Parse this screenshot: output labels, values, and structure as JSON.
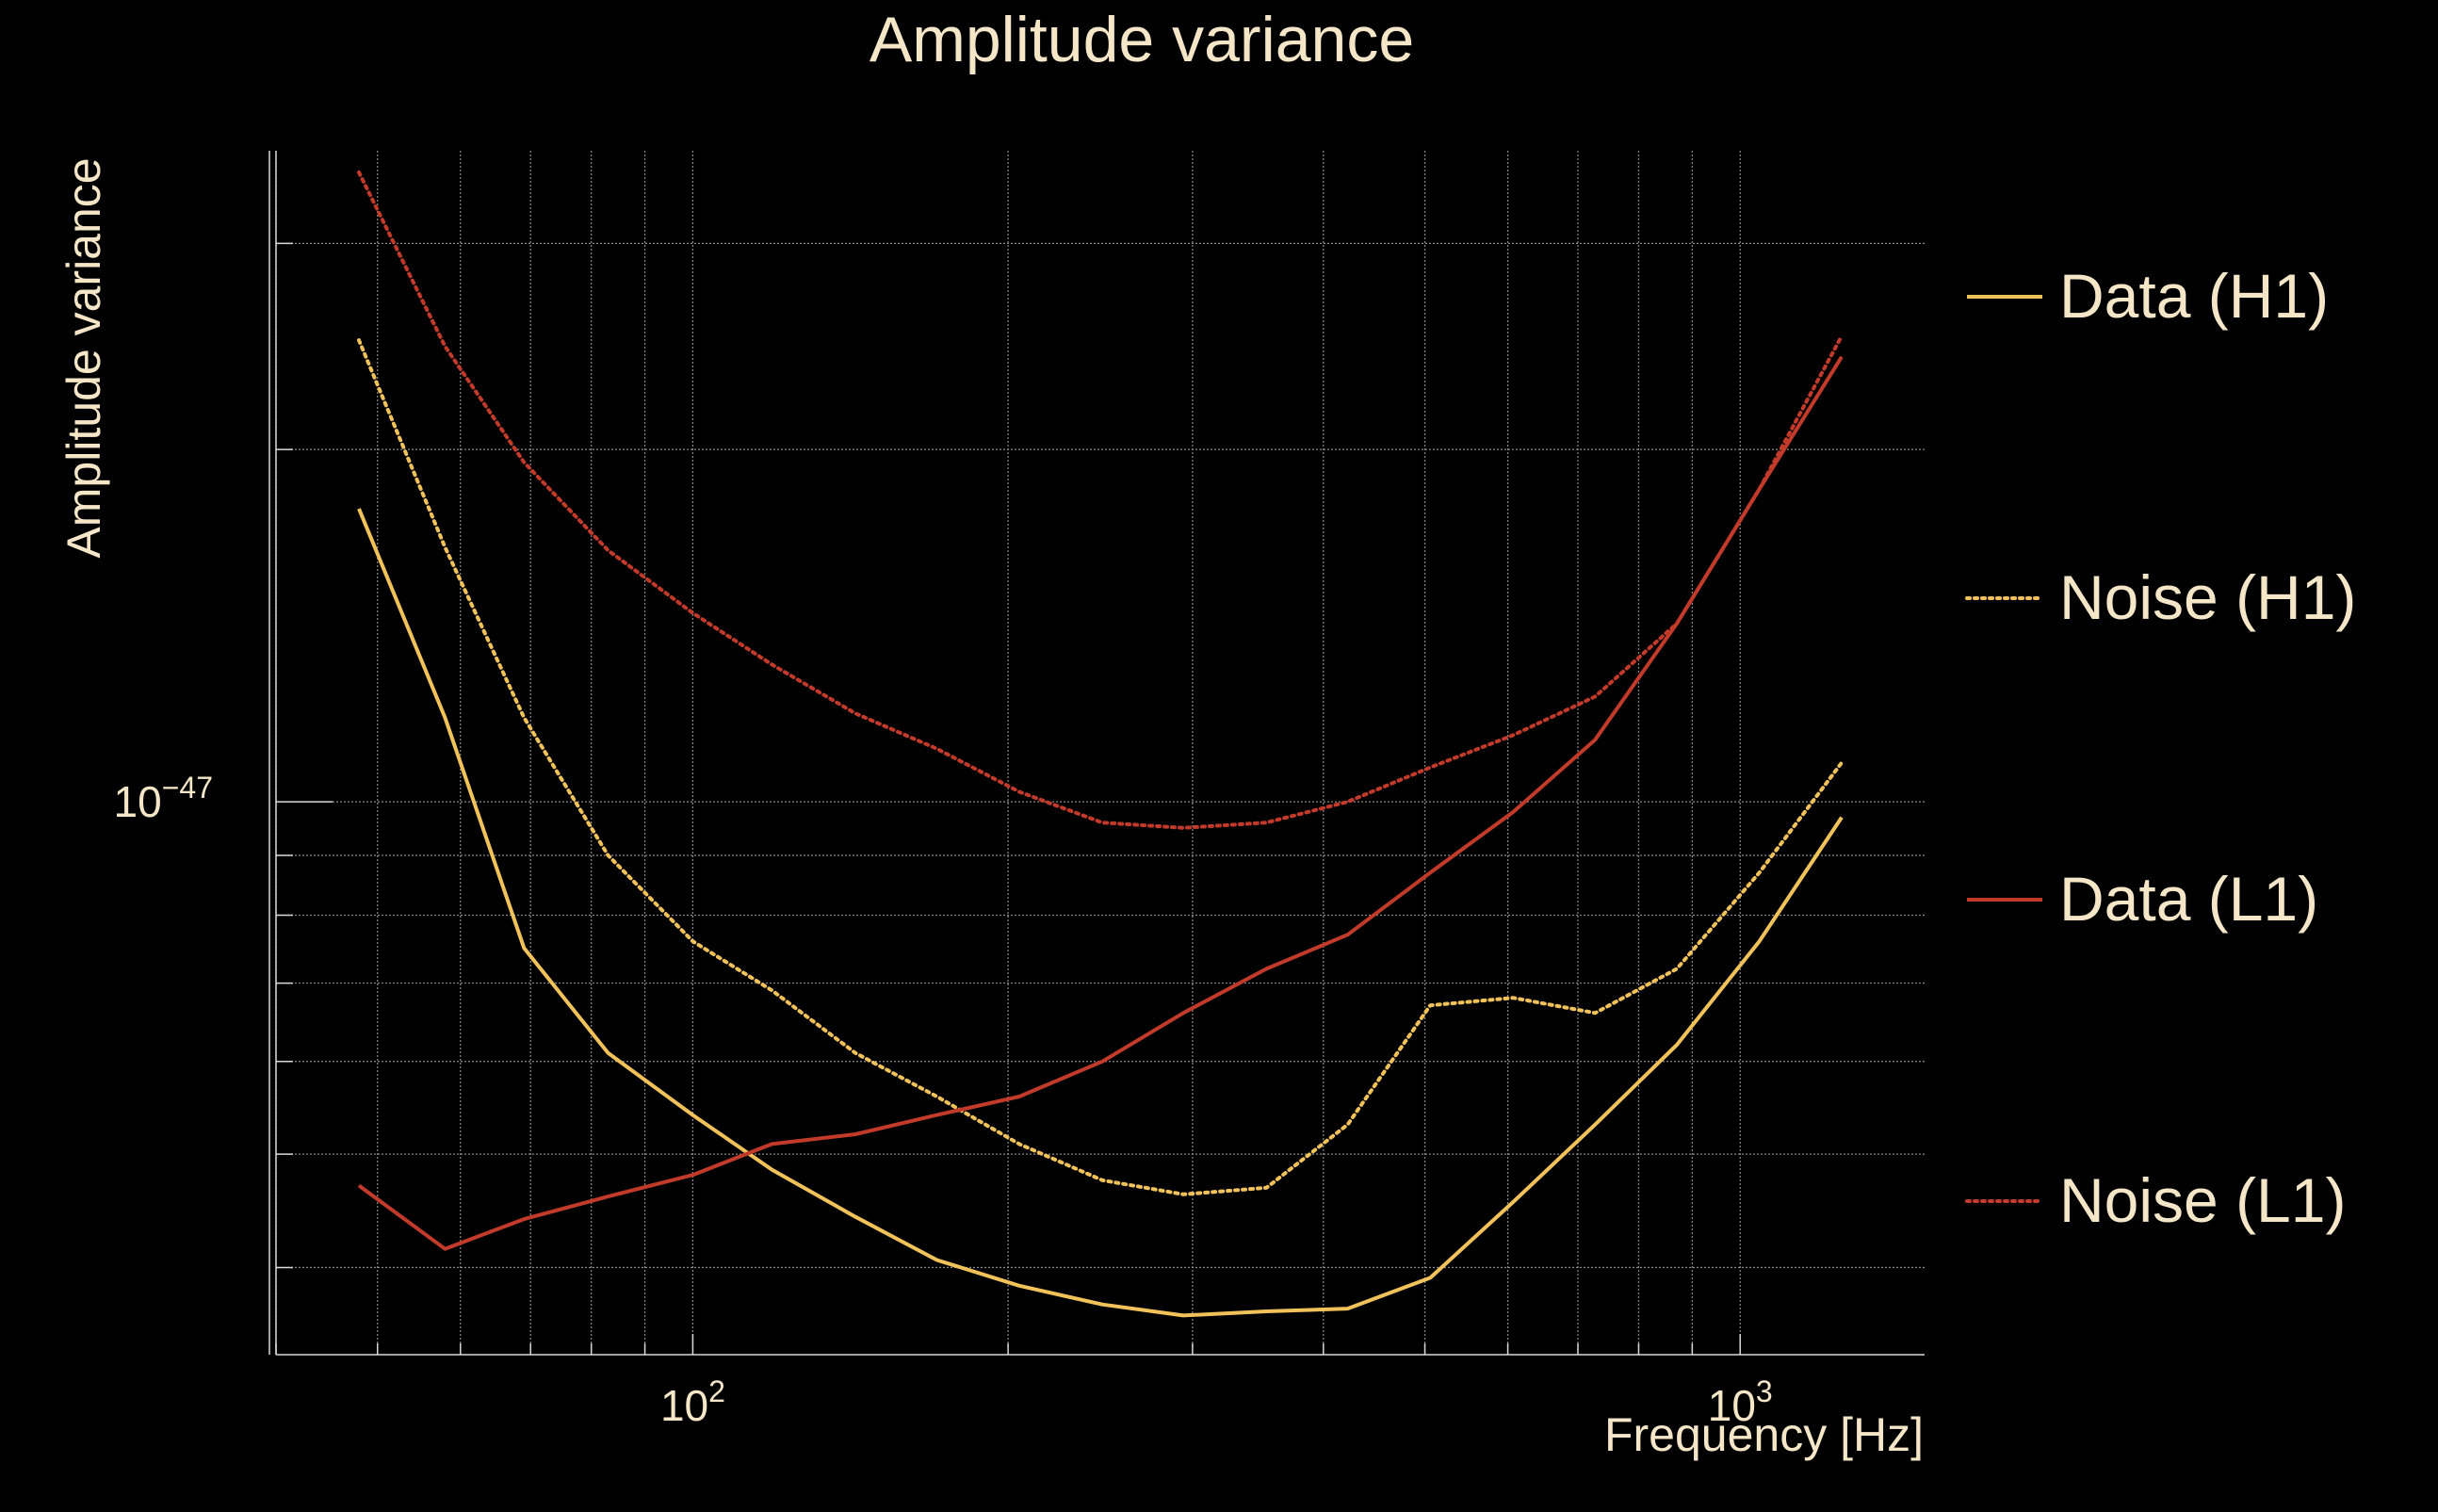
{
  "chart_data": {
    "type": "line",
    "title": "Amplitude variance",
    "xlabel": "Frequency [Hz]",
    "ylabel": "Amplitude variance",
    "x_scale": "log",
    "y_scale": "log",
    "xlim": [
      40,
      1500
    ],
    "ylim": [
      3.37e-48,
      3.6e-47
    ],
    "x_tick_labels": [
      {
        "value": 100,
        "base": "10",
        "exp": "2"
      },
      {
        "value": 1000,
        "base": "10",
        "exp": "3"
      }
    ],
    "y_tick_labels": [
      {
        "value": 1e-47,
        "base": "10",
        "exp": "−47"
      }
    ],
    "grid": true,
    "legend_position": "right",
    "colors": {
      "background": "#000000",
      "text": "#f6e6c8",
      "grid": "#8a8a8a",
      "axis": "#d8d8d8"
    },
    "series": [
      {
        "name": "Data (H1)",
        "color": "#f2c25a",
        "style": "solid",
        "x": [
          48,
          58,
          69,
          83,
          100,
          119,
          143,
          171,
          205,
          246,
          294,
          353,
          422,
          506,
          607,
          727,
          870,
          1043,
          1250
        ],
        "y": [
          1.78e-47,
          1.18e-47,
          7.5e-48,
          6.1e-48,
          5.4e-48,
          4.85e-48,
          4.42e-48,
          4.06e-48,
          3.86e-48,
          3.72e-48,
          3.64e-48,
          3.67e-48,
          3.69e-48,
          3.92e-48,
          4.55e-48,
          5.3e-48,
          6.2e-48,
          7.6e-48,
          9.7e-48
        ]
      },
      {
        "name": "Noise (H1)",
        "color": "#f2c25a",
        "style": "dotted",
        "x": [
          48,
          58,
          69,
          83,
          100,
          119,
          143,
          171,
          205,
          246,
          294,
          353,
          422,
          506,
          607,
          727,
          870,
          1043,
          1250
        ],
        "y": [
          2.48e-47,
          1.65e-47,
          1.18e-47,
          9e-48,
          7.6e-48,
          6.9e-48,
          6.1e-48,
          5.6e-48,
          5.1e-48,
          4.75e-48,
          4.62e-48,
          4.68e-48,
          5.3e-48,
          6.7e-48,
          6.8e-48,
          6.6e-48,
          7.2e-48,
          8.7e-48,
          1.08e-47
        ]
      },
      {
        "name": "Data (L1)",
        "color": "#c23b2a",
        "style": "solid",
        "x": [
          48,
          58,
          69,
          83,
          100,
          119,
          143,
          171,
          205,
          246,
          294,
          353,
          422,
          506,
          607,
          727,
          870,
          1043,
          1250
        ],
        "y": [
          4.7e-48,
          4.15e-48,
          4.4e-48,
          4.6e-48,
          4.8e-48,
          5.1e-48,
          5.2e-48,
          5.4e-48,
          5.6e-48,
          6e-48,
          6.6e-48,
          7.2e-48,
          7.7e-48,
          8.7e-48,
          9.8e-48,
          1.13e-47,
          1.42e-47,
          1.85e-47,
          2.4e-47
        ]
      },
      {
        "name": "Noise (L1)",
        "color": "#c23b2a",
        "style": "dotted",
        "x": [
          48,
          58,
          69,
          83,
          100,
          119,
          143,
          171,
          205,
          246,
          294,
          353,
          422,
          506,
          607,
          727,
          870,
          1043,
          1250
        ],
        "y": [
          3.45e-47,
          2.45e-47,
          1.95e-47,
          1.64e-47,
          1.45e-47,
          1.31e-47,
          1.19e-47,
          1.11e-47,
          1.02e-47,
          9.6e-48,
          9.5e-48,
          9.6e-48,
          1e-47,
          1.07e-47,
          1.14e-47,
          1.23e-47,
          1.42e-47,
          1.85e-47,
          2.5e-47
        ]
      }
    ]
  }
}
